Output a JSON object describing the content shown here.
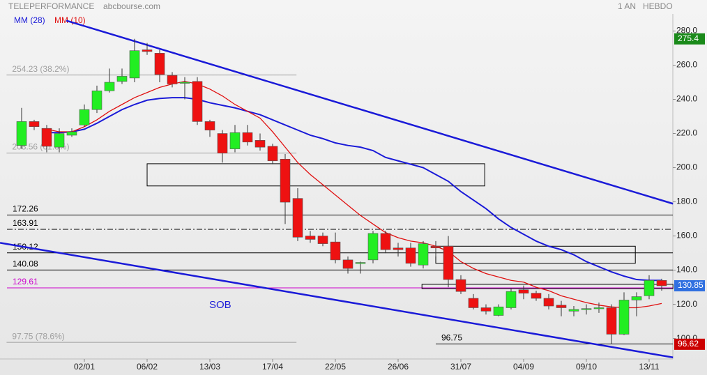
{
  "chart_data": {
    "type": "candlestick",
    "title": "TELEPERFORMANCE",
    "source": "abcbourse.com",
    "period": "1 AN",
    "interval": "HEBDO",
    "categories": [
      null,
      null,
      null,
      null,
      null,
      "02/01",
      null,
      null,
      null,
      null,
      "06/02",
      null,
      null,
      null,
      null,
      "13/03",
      null,
      null,
      null,
      null,
      "17/04",
      null,
      null,
      null,
      null,
      "22/05",
      null,
      null,
      null,
      null,
      "26/06",
      null,
      null,
      null,
      null,
      "31/07",
      null,
      null,
      null,
      null,
      "04/09",
      null,
      null,
      null,
      null,
      "09/10",
      null,
      null,
      null,
      null,
      "13/11",
      null
    ],
    "open": [
      213,
      227,
      223,
      212,
      219,
      225,
      234,
      245,
      250.5,
      252.5,
      269,
      267,
      254,
      250,
      250.5,
      227,
      220,
      211,
      220.5,
      216,
      212.5,
      205,
      182,
      160,
      160,
      156.5,
      146,
      144,
      146,
      161.5,
      153,
      153,
      143,
      154,
      154,
      134.5,
      123.5,
      118,
      113.5,
      118,
      128.5,
      126.5,
      123.5,
      119.5,
      116,
      117,
      117.5,
      118,
      102.5,
      122.5,
      125,
      134
    ],
    "high": [
      235,
      228,
      225,
      223,
      223,
      237,
      248,
      258,
      258,
      275.4,
      273,
      269,
      256,
      253,
      253,
      228,
      222,
      225,
      225,
      220,
      214,
      208,
      188,
      163,
      162,
      162,
      148,
      145,
      163,
      163,
      156,
      156,
      157,
      157,
      160,
      137,
      126,
      120,
      120,
      129,
      131,
      128,
      126,
      122,
      119,
      120,
      121,
      120,
      127,
      127,
      137,
      135
    ],
    "low": [
      211,
      222,
      209,
      209,
      218,
      224,
      232,
      244,
      249,
      250,
      266,
      250,
      247,
      240,
      225,
      218,
      203,
      209,
      213,
      210,
      202,
      167,
      157,
      156,
      154,
      144,
      138,
      138,
      144,
      150,
      148,
      142,
      141,
      148,
      130,
      126,
      117,
      114,
      113,
      117,
      123,
      122,
      117,
      113,
      113,
      114,
      115,
      96.62,
      102,
      113,
      123,
      128
    ],
    "close": [
      227,
      224,
      212.5,
      220,
      221,
      234,
      245,
      250,
      253.5,
      268.5,
      268,
      254.5,
      249,
      250,
      227,
      222,
      208.5,
      220.5,
      215,
      212,
      204,
      179.8,
      159.3,
      158,
      155.5,
      146,
      141,
      144.5,
      161.5,
      152,
      152,
      144,
      155.5,
      153,
      134.5,
      127.5,
      118,
      116,
      118.5,
      127.5,
      126.5,
      123.5,
      119,
      118,
      117,
      117.5,
      118,
      102.5,
      122.5,
      124.5,
      134,
      130.85
    ],
    "up_color": "#22ee22",
    "down_color": "#ee1111",
    "series": [
      {
        "name": "MM (28)",
        "color": "#1a1ad8",
        "values": [
          null,
          null,
          220.5,
          220.5,
          221,
          222.5,
          226,
          230,
          234,
          237,
          239.5,
          240.5,
          241,
          241,
          240,
          238,
          236.5,
          235,
          233,
          231,
          228,
          225,
          222,
          219,
          217,
          214.5,
          213,
          212,
          210,
          206,
          204,
          202,
          200,
          196,
          192,
          186,
          181,
          176,
          170,
          165,
          161,
          157,
          154,
          152,
          149,
          145,
          142,
          139,
          136.5,
          134.5,
          134,
          134
        ]
      },
      {
        "name": "MM (10)",
        "color": "#e01010",
        "values": [
          null,
          null,
          222.5,
          221,
          221,
          224,
          228,
          233,
          237,
          241,
          244,
          247,
          249,
          250.5,
          249,
          246,
          242,
          237,
          233,
          229,
          221,
          212,
          203,
          196,
          190,
          184,
          178,
          172,
          167,
          162,
          159,
          157,
          156,
          154,
          151,
          145,
          141,
          138,
          136,
          134,
          133,
          130,
          128,
          125,
          123,
          121,
          119.5,
          118.5,
          118,
          118,
          119,
          120.5
        ]
      }
    ],
    "ylim": [
      88,
      290
    ],
    "yticks": [
      {
        "value": 100,
        "label": "100.0"
      },
      {
        "value": 120,
        "label": "120.0"
      },
      {
        "value": 140,
        "label": "140.0"
      },
      {
        "value": 160,
        "label": "160.0"
      },
      {
        "value": 180,
        "label": "180.0"
      },
      {
        "value": 200,
        "label": "200.0"
      },
      {
        "value": 220,
        "label": "220.0"
      },
      {
        "value": 240,
        "label": "240.0"
      },
      {
        "value": 260,
        "label": "260.0"
      },
      {
        "value": 280,
        "label": "280.0"
      }
    ],
    "levels": [
      {
        "value": 254.23,
        "label": "254.23 (38.2%)",
        "x": [
          -1.2,
          21.9
        ],
        "color": "#a0a0a0"
      },
      {
        "value": 208.56,
        "label": "208.56 (61.8%)",
        "x": [
          -1.2,
          21.9
        ],
        "color": "#a0a0a0"
      },
      {
        "value": 97.75,
        "label": "97.75 (78.6%)",
        "x": [
          -1.2,
          21.9
        ],
        "color": "#a0a0a0"
      },
      {
        "value": 172.26,
        "color": "#000000"
      },
      {
        "value": 163.91,
        "color": "#000000",
        "style": "dashdot"
      },
      {
        "value": 150.12,
        "color": "#000000"
      },
      {
        "value": 140.08,
        "color": "#000000"
      },
      {
        "value": 129.61,
        "color": "#cc00cc"
      },
      {
        "value": 96.75,
        "x": [
          33,
          51.9
        ],
        "color": "#000000"
      }
    ],
    "zones": [
      {
        "x": [
          10,
          36.9
        ],
        "y": [
          189.3,
          202.3
        ]
      },
      {
        "x": [
          33,
          48.9
        ],
        "y": [
          144,
          154
        ]
      },
      {
        "x": [
          31.9,
          51.9
        ],
        "y": [
          129.2,
          131.7
        ]
      }
    ],
    "trendlines": [
      {
        "x": [
          3.56,
          51.9
        ],
        "y": [
          286.1,
          178.9
        ],
        "color": "#1a1ad8"
      },
      {
        "x": [
          -1.72,
          51.9
        ],
        "y": [
          156,
          88.9
        ],
        "color": "#1a1ad8"
      }
    ],
    "price_labels": [
      {
        "value": 275.4,
        "color": "#1a8a1a"
      },
      {
        "value": 130.85,
        "color": "#3070e0"
      },
      {
        "value": 96.62,
        "color": "#cc0000"
      }
    ],
    "annotations": [
      "SOB"
    ]
  }
}
